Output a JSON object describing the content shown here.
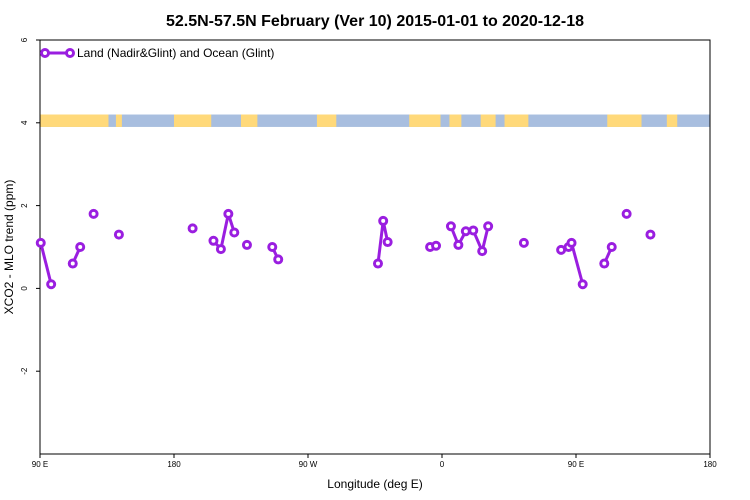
{
  "chart_data": {
    "type": "line",
    "title": "52.5N-57.5N February (Ver 10)   2015-01-01 to 2020-12-18",
    "xlabel": "Longitude (deg E)",
    "ylabel": "XCO2 - MLO trend (ppm)",
    "xlim": [
      90,
      540
    ],
    "ylim": [
      -4,
      6
    ],
    "x_ticks": [
      {
        "value": 90,
        "label": "90 E"
      },
      {
        "value": 180,
        "label": "180"
      },
      {
        "value": 270,
        "label": "90 W"
      },
      {
        "value": 360,
        "label": "0"
      },
      {
        "value": 450,
        "label": "90 E"
      },
      {
        "value": 540,
        "label": "180"
      }
    ],
    "y_ticks": [
      {
        "value": -2,
        "label": "-2"
      },
      {
        "value": 0,
        "label": "0"
      },
      {
        "value": 2,
        "label": "2"
      },
      {
        "value": 4,
        "label": "4"
      },
      {
        "value": 6,
        "label": "6"
      }
    ],
    "grid": false,
    "legend_position": "top-left",
    "colors": {
      "series": "#9a1ee0",
      "land": "#ffd97a",
      "ocean": "#a8bedf"
    },
    "land_ocean_band": {
      "y_range": [
        3.9,
        4.2
      ],
      "land_segments": [
        [
          90,
          136
        ],
        [
          141,
          145
        ],
        [
          180,
          205
        ],
        [
          225,
          236
        ],
        [
          276,
          289
        ],
        [
          338,
          359
        ],
        [
          365,
          373
        ],
        [
          386,
          396
        ],
        [
          402,
          418
        ],
        [
          471,
          494
        ],
        [
          511,
          518
        ]
      ]
    },
    "series": [
      {
        "name": "Land (Nadir&Glint) and Ocean (Glint)",
        "segments": [
          [
            [
              90.5,
              1.1
            ],
            [
              97.5,
              0.1
            ]
          ],
          [
            [
              112,
              0.6
            ],
            [
              117,
              1.0
            ]
          ],
          [
            [
              126,
              1.8
            ]
          ],
          [
            [
              143,
              1.3
            ]
          ],
          [
            [
              192.5,
              1.45
            ]
          ],
          [
            [
              206.5,
              1.15
            ],
            [
              211.5,
              0.95
            ],
            [
              216.5,
              1.8
            ],
            [
              220.5,
              1.35
            ]
          ],
          [
            [
              229,
              1.05
            ]
          ],
          [
            [
              246,
              1.0
            ],
            [
              250,
              0.7
            ]
          ],
          [
            [
              317,
              0.6
            ],
            [
              320.5,
              1.63
            ],
            [
              323.5,
              1.12
            ]
          ],
          [
            [
              352,
              1.0
            ],
            [
              356,
              1.03
            ]
          ],
          [
            [
              366,
              1.5
            ],
            [
              371,
              1.05
            ],
            [
              376,
              1.38
            ],
            [
              381,
              1.4
            ],
            [
              387,
              0.9
            ],
            [
              391,
              1.5
            ]
          ],
          [
            [
              415,
              1.1
            ]
          ],
          [
            [
              440,
              0.93
            ],
            [
              445,
              1.0
            ],
            [
              447,
              1.1
            ],
            [
              454.5,
              0.1
            ]
          ],
          [
            [
              469,
              0.6
            ],
            [
              474,
              1.0
            ]
          ],
          [
            [
              484,
              1.8
            ]
          ],
          [
            [
              500,
              1.3
            ]
          ]
        ]
      }
    ]
  }
}
